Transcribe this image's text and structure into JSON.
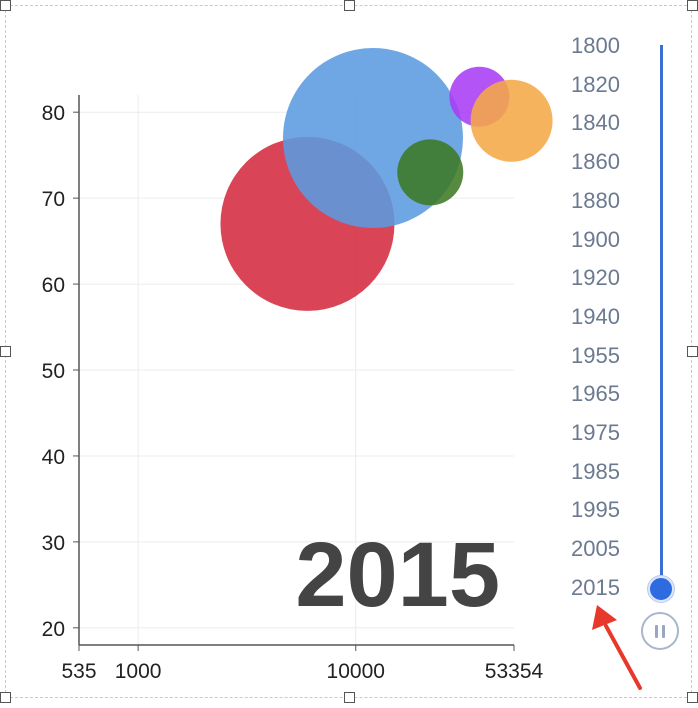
{
  "chart_data": {
    "type": "scatter",
    "title": "",
    "xlabel": "",
    "ylabel": "",
    "x_scale": "log",
    "xlim": [
      535,
      53354
    ],
    "ylim": [
      18,
      82
    ],
    "x_ticks": [
      "535",
      "1000",
      "10000",
      "53354"
    ],
    "x_tick_values": [
      535,
      1000,
      10000,
      53354
    ],
    "y_ticks": [
      20,
      30,
      40,
      50,
      60,
      70,
      80
    ],
    "grid": true,
    "current_year": "2015",
    "series": [
      {
        "x": 6000,
        "y": 67,
        "size": 87,
        "color": "#d42a3f"
      },
      {
        "x": 12000,
        "y": 77,
        "size": 90,
        "color": "#5b9be0"
      },
      {
        "x": 22000,
        "y": 73,
        "size": 33,
        "color": "#3d7a24"
      },
      {
        "x": 37000,
        "y": 81.8,
        "size": 30,
        "color": "#a93cf5"
      },
      {
        "x": 52000,
        "y": 79,
        "size": 41,
        "color": "#f5a847"
      }
    ]
  },
  "timeline": {
    "years": [
      "1800",
      "1820",
      "1840",
      "1860",
      "1880",
      "1900",
      "1920",
      "1940",
      "1955",
      "1965",
      "1975",
      "1985",
      "1995",
      "2005",
      "2015"
    ],
    "selected": "2015",
    "track_color": "#3a6fd8"
  }
}
